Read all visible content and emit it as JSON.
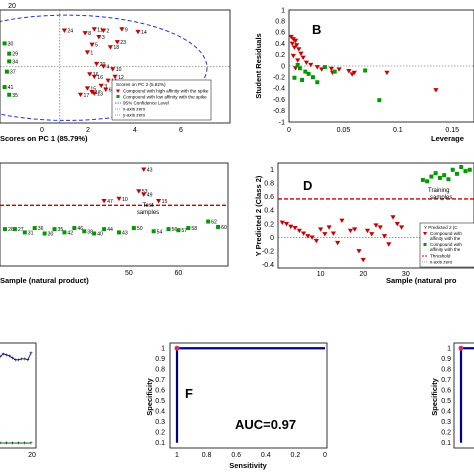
{
  "figure": {
    "panels": {
      "a": {
        "xlabel": "Scores on PC 1 (85.79%)",
        "xticks": [
          "0",
          "2",
          "4",
          "6"
        ],
        "yticks": [
          "20"
        ],
        "legend": [
          "Scores on PC 2 (5.82%)",
          "Compound with high affinity with the spike",
          "Compound with low affinity with the spike",
          "95% Confidence Level",
          "x-axis zero",
          "y-axis zero"
        ]
      },
      "b": {
        "letter": "B",
        "ylabel": "Student Residuals",
        "xlabel": "Leverage",
        "xticks": [
          "0",
          "0.05",
          "0.1",
          "0.15"
        ],
        "yticks": [
          "1",
          "0.8",
          "0.6",
          "0.4",
          "0.2",
          "0",
          "-0.2",
          "-0.4",
          "-0.6",
          "-0.8",
          "-1"
        ]
      },
      "c": {
        "xlabel": "Sample (natural product)",
        "xticks": [
          "50",
          "60"
        ],
        "annotation": [
          "Test",
          "samples"
        ]
      },
      "d": {
        "letter": "D",
        "ylabel": "Y Predicted 2 (Class 2)",
        "xlabel": "Sample (natural pro",
        "xticks": [
          "10",
          "20",
          "30"
        ],
        "yticks": [
          "1",
          "0.8",
          "0.6",
          "0.4",
          "0.2",
          "0",
          "-0.2",
          "-0.4"
        ],
        "annotation": [
          "Training",
          "samples"
        ],
        "legend": [
          "Y Predicted 2 (C",
          "Compound with",
          "affinity with the",
          "Compound with",
          "affinity with the",
          "Threshold",
          "x-axis zero"
        ]
      },
      "e": {
        "xticks": [
          "20"
        ]
      },
      "f": {
        "letter": "F",
        "ylabel": "Specificity",
        "xlabel": "Sensitivity",
        "xticks": [
          "1",
          "0.8",
          "0.6",
          "0.4",
          "0.2",
          "0"
        ],
        "yticks": [
          "1",
          "0.9",
          "0.8",
          "0.7",
          "0.6",
          "0.5",
          "0.4",
          "0.3",
          "0.2",
          "0.1"
        ],
        "auc": "AUC=0.97"
      },
      "g": {
        "ylabel": "Specificity",
        "yticks": [
          "1",
          "0.9",
          "0.8",
          "0.7",
          "0.6",
          "0.5",
          "0.4",
          "0.3",
          "0.2",
          "0.1"
        ]
      }
    }
  },
  "chart_data": [
    {
      "type": "scatter",
      "panel": "a",
      "xlim": [
        -2.6,
        7.4
      ],
      "ylim": [
        -22,
        22
      ],
      "series": [
        {
          "name": "Compound with high affinity with the spike",
          "color": "#cc0000",
          "marker": "triangle-down",
          "points": [
            [
              0.2,
              14,
              "24"
            ],
            [
              1.1,
              13,
              "8"
            ],
            [
              1.5,
              14.5,
              "11"
            ],
            [
              1.9,
              14,
              "2"
            ],
            [
              2.7,
              14.5,
              "9"
            ],
            [
              3.4,
              13.5,
              "14"
            ],
            [
              1.7,
              11.5,
              "3"
            ],
            [
              2.5,
              9.5,
              "23"
            ],
            [
              1.4,
              8.5,
              "5"
            ],
            [
              2.2,
              7.5,
              "18"
            ],
            [
              1.2,
              5.5,
              "1"
            ],
            [
              1.6,
              1,
              "20"
            ],
            [
              1.9,
              0,
              "4"
            ],
            [
              2.3,
              -1,
              "10"
            ],
            [
              1.3,
              -3,
              "16"
            ],
            [
              1.5,
              -4,
              "16"
            ],
            [
              2.4,
              -4,
              "12"
            ],
            [
              2.1,
              -5.5,
              "14"
            ],
            [
              1.8,
              -7.5,
              "3"
            ],
            [
              1.2,
              -8.5,
              "15"
            ],
            [
              2.0,
              -9,
              "6"
            ],
            [
              1.4,
              -10,
              "17"
            ],
            [
              0.9,
              -11,
              "17"
            ],
            [
              1.5,
              -10.5,
              "13"
            ]
          ]
        },
        {
          "name": "Compound with low affinity with the spike",
          "color": "#009900",
          "marker": "square",
          "points": [
            [
              -2.4,
              9,
              "30"
            ],
            [
              -2.2,
              5,
              "29"
            ],
            [
              -2.2,
              2,
              "34"
            ],
            [
              -2.3,
              -2,
              "37"
            ],
            [
              -2.4,
              -8,
              "41"
            ],
            [
              -2.2,
              -11,
              "35"
            ]
          ]
        }
      ]
    },
    {
      "type": "scatter",
      "panel": "b",
      "xlim": [
        0,
        0.17
      ],
      "ylim": [
        -1,
        1
      ],
      "series": [
        {
          "name": "Compound with high affinity with the spike",
          "color": "#cc0000",
          "marker": "triangle-down",
          "points": [
            [
              0.002,
              0.52
            ],
            [
              0.004,
              0.48
            ],
            [
              0.006,
              0.45
            ],
            [
              0.003,
              0.4
            ],
            [
              0.007,
              0.37
            ],
            [
              0.005,
              0.33
            ],
            [
              0.009,
              0.3
            ],
            [
              0.011,
              0.22
            ],
            [
              0.004,
              0.18
            ],
            [
              0.013,
              0.15
            ],
            [
              0.008,
              0.1
            ],
            [
              0.016,
              0.06
            ],
            [
              0.02,
              0.02
            ],
            [
              0.006,
              -0.04
            ],
            [
              0.026,
              -0.02
            ],
            [
              0.03,
              -0.06
            ],
            [
              0.039,
              -0.05
            ],
            [
              0.046,
              -0.06
            ],
            [
              0.055,
              -0.09
            ],
            [
              0.06,
              -0.12
            ],
            [
              0.058,
              -0.15
            ],
            [
              0.04,
              -0.12
            ],
            [
              0.09,
              -0.12
            ],
            [
              0.135,
              -0.43
            ]
          ]
        },
        {
          "name": "Compound with low affinity with the spike",
          "color": "#009900",
          "marker": "square",
          "points": [
            [
              0.008,
              0.02
            ],
            [
              0.01,
              -0.04
            ],
            [
              0.015,
              -0.1
            ],
            [
              0.018,
              -0.14
            ],
            [
              0.005,
              -0.21
            ],
            [
              0.012,
              -0.25
            ],
            [
              0.022,
              -0.2
            ],
            [
              0.026,
              -0.29
            ],
            [
              0.033,
              -0.02
            ],
            [
              0.042,
              -0.1
            ],
            [
              0.07,
              -0.08
            ],
            [
              0.083,
              -0.61
            ]
          ]
        }
      ]
    },
    {
      "type": "scatter",
      "panel": "c",
      "xlim": [
        24,
        70
      ],
      "ylim": [
        -0.6,
        1.3
      ],
      "threshold": 0.52,
      "series": [
        {
          "name": "Compound with high affinity with the spike",
          "color": "#cc0000",
          "marker": "triangle-down",
          "points": [
            [
              53,
              1.18,
              "43"
            ],
            [
              52,
              0.78,
              "53"
            ],
            [
              48,
              0.64,
              "10"
            ],
            [
              56,
              0.6,
              "15"
            ],
            [
              45,
              0.6,
              "47"
            ],
            [
              53,
              0.72,
              "49"
            ]
          ]
        },
        {
          "name": "Compound with low affinity with the spike",
          "color": "#009900",
          "marker": "square",
          "points": [
            [
              25,
              0.08,
              "26"
            ],
            [
              27,
              0.08,
              "27"
            ],
            [
              29,
              0.02,
              "31"
            ],
            [
              31,
              0.1,
              "36"
            ],
            [
              33,
              0.0,
              "30"
            ],
            [
              35,
              0.08,
              "35"
            ],
            [
              37,
              0.02,
              "42"
            ],
            [
              39,
              0.1,
              "46"
            ],
            [
              41,
              0.04,
              "38"
            ],
            [
              43,
              0.0,
              "40"
            ],
            [
              45,
              0.08,
              "44"
            ],
            [
              48,
              0.02,
              "43"
            ],
            [
              51,
              0.1,
              "50"
            ],
            [
              55,
              0.04,
              "54"
            ],
            [
              58,
              0.08,
              "56"
            ],
            [
              60,
              0.06,
              "57"
            ],
            [
              62,
              0.1,
              "58"
            ],
            [
              66,
              0.22,
              "62"
            ],
            [
              68,
              0.12,
              "60"
            ]
          ]
        }
      ]
    },
    {
      "type": "scatter",
      "panel": "d",
      "xlim": [
        0,
        46
      ],
      "ylim": [
        -0.45,
        1.1
      ],
      "threshold": 0.57,
      "series": [
        {
          "name": "Compound with high affinity with the spike",
          "color": "#cc0000",
          "marker": "triangle-down",
          "points": [
            [
              1,
              0.22
            ],
            [
              2,
              0.2
            ],
            [
              3,
              0.16
            ],
            [
              4,
              0.14
            ],
            [
              5,
              0.1
            ],
            [
              6,
              0.06
            ],
            [
              7,
              0.02
            ],
            [
              8,
              0.0
            ],
            [
              9,
              -0.05
            ],
            [
              10,
              0.12
            ],
            [
              11,
              0.05
            ],
            [
              12,
              0.15
            ],
            [
              13,
              0.06
            ],
            [
              14,
              -0.08
            ],
            [
              15,
              0.25
            ],
            [
              17,
              0.1
            ],
            [
              18,
              0.12
            ],
            [
              19,
              -0.2
            ],
            [
              20,
              -0.33
            ],
            [
              21,
              0.1
            ],
            [
              22,
              0.05
            ],
            [
              23,
              0.18
            ],
            [
              24,
              0.15
            ],
            [
              25,
              0.02
            ],
            [
              26,
              -0.1
            ],
            [
              27,
              0.3
            ],
            [
              28,
              0.2
            ],
            [
              29,
              0.15
            ]
          ]
        },
        {
          "name": "Compound with low affinity with the spike",
          "color": "#009900",
          "marker": "square",
          "points": [
            [
              34,
              0.85
            ],
            [
              35,
              0.83
            ],
            [
              36,
              0.9
            ],
            [
              37,
              0.95
            ],
            [
              38,
              0.88
            ],
            [
              39,
              0.92
            ],
            [
              40,
              0.86
            ],
            [
              41,
              1.0
            ],
            [
              42,
              0.94
            ],
            [
              43,
              1.04
            ],
            [
              44,
              0.98
            ],
            [
              45,
              1.0
            ]
          ]
        }
      ]
    },
    {
      "type": "line",
      "panel": "e",
      "series": [
        {
          "name": "",
          "color": "#3333aa",
          "x": [
            0,
            2,
            4,
            6,
            8,
            10,
            12,
            14,
            16,
            18,
            20
          ],
          "y": [
            0.89,
            0.92,
            0.91,
            0.9,
            0.88,
            0.86,
            0.86,
            0.87,
            0.87,
            0.86,
            0.93
          ]
        },
        {
          "name": "",
          "color": "#009900",
          "x": [
            0,
            4,
            8,
            12,
            16,
            20
          ],
          "y": [
            0.02,
            0.02,
            0.02,
            0.02,
            0.02,
            0.02
          ]
        }
      ]
    },
    {
      "type": "line",
      "panel": "f",
      "xlim": [
        1,
        0
      ],
      "ylim": [
        0.05,
        1.05
      ],
      "auc": 0.97,
      "series": [
        {
          "name": "",
          "color": "#000088",
          "x": [
            1,
            1,
            0
          ],
          "y": [
            0.1,
            1,
            1
          ]
        }
      ]
    },
    {
      "type": "line",
      "panel": "g",
      "ylim": [
        0.05,
        1.05
      ],
      "series": [
        {
          "name": "",
          "color": "#000088",
          "x": [
            1,
            1
          ],
          "y": [
            0.1,
            1
          ]
        }
      ]
    }
  ]
}
